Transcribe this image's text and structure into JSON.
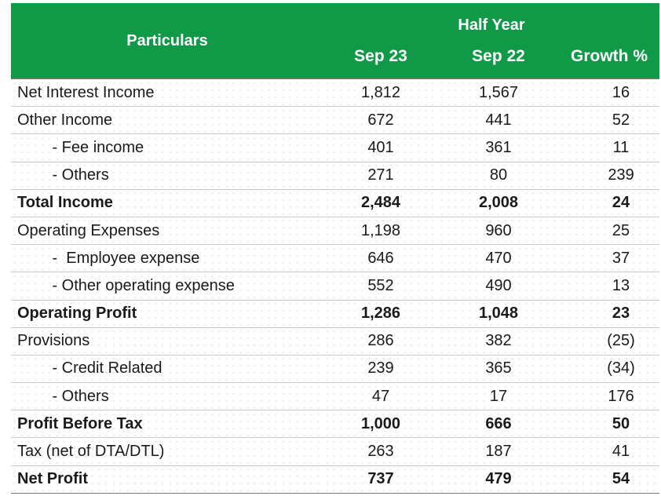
{
  "header": {
    "particulars": "Particulars",
    "half_year": "Half Year",
    "col_sep23": "Sep 23",
    "col_sep22": "Sep 22",
    "col_growth": "Growth %"
  },
  "rows": [
    {
      "label": "Net Interest Income",
      "sep23": "1,812",
      "sep22": "1,567",
      "growth": "16"
    },
    {
      "label": "Other Income",
      "sep23": "672",
      "sep22": "441",
      "growth": "52"
    },
    {
      "label": "        - Fee income",
      "sep23": "401",
      "sep22": "361",
      "growth": "11"
    },
    {
      "label": "        - Others",
      "sep23": "271",
      "sep22": "80",
      "growth": "239"
    },
    {
      "label": "Total Income",
      "sep23": "2,484",
      "sep22": "2,008",
      "growth": "24"
    },
    {
      "label": "Operating Expenses",
      "sep23": "1,198",
      "sep22": "960",
      "growth": "25"
    },
    {
      "label": "        -  Employee expense",
      "sep23": "646",
      "sep22": "470",
      "growth": "37"
    },
    {
      "label": "        - Other operating expense",
      "sep23": "552",
      "sep22": "490",
      "growth": "13"
    },
    {
      "label": "Operating Profit",
      "sep23": "1,286",
      "sep22": "1,048",
      "growth": "23"
    },
    {
      "label": "Provisions",
      "sep23": "286",
      "sep22": "382",
      "growth": "(25)"
    },
    {
      "label": "        - Credit Related",
      "sep23": "239",
      "sep22": "365",
      "growth": "(34)"
    },
    {
      "label": "        - Others",
      "sep23": "47",
      "sep22": "17",
      "growth": "176"
    },
    {
      "label": "Profit Before Tax",
      "sep23": "1,000",
      "sep22": "666",
      "growth": "50"
    },
    {
      "label": "Tax (net of DTA/DTL)",
      "sep23": "263",
      "sep22": "187",
      "growth": "41"
    },
    {
      "label": "Net Profit",
      "sep23": "737",
      "sep22": "479",
      "growth": "54"
    }
  ],
  "colors": {
    "header_bg": "#109a47",
    "header_text": "#ffffff"
  }
}
